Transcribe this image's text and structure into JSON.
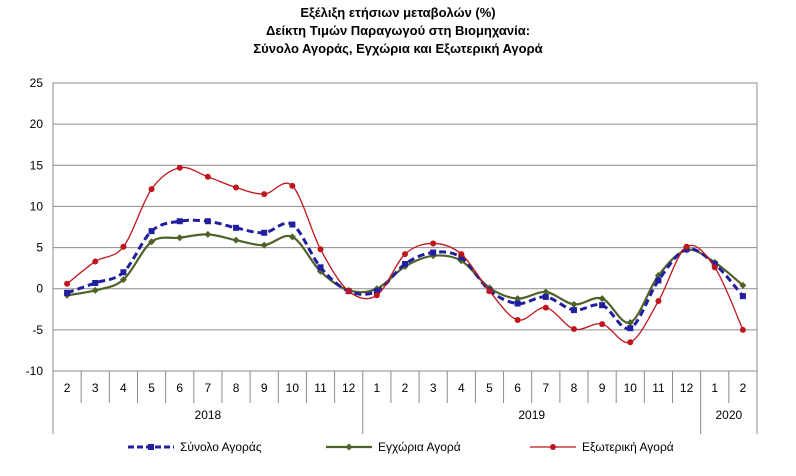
{
  "chart_data": {
    "type": "line",
    "title_lines": [
      "Εξέλιξη ετήσιων μεταβολών (%)",
      "Δείκτη Τιμών Παραγωγού στη Βιομηχανία:",
      "Σύνολο Αγοράς, Εγχώρια και Εξωτερική Αγορά"
    ],
    "xlabel": "",
    "ylabel": "",
    "ylim": [
      -10,
      25
    ],
    "yticks": [
      "25",
      "20",
      "15",
      "10",
      "5",
      "0",
      "-5",
      "-10"
    ],
    "ytick_values": [
      25,
      20,
      15,
      10,
      5,
      0,
      -5,
      -10
    ],
    "categories": [
      "2",
      "3",
      "4",
      "5",
      "6",
      "7",
      "8",
      "9",
      "10",
      "11",
      "12",
      "1",
      "2",
      "3",
      "4",
      "5",
      "6",
      "7",
      "8",
      "9",
      "10",
      "11",
      "12",
      "1",
      "2"
    ],
    "year_groups": [
      {
        "label": "2018",
        "start": 0,
        "end": 10
      },
      {
        "label": "2019",
        "start": 11,
        "end": 22
      },
      {
        "label": "2020",
        "start": 23,
        "end": 24
      }
    ],
    "grid": true,
    "legend_position": "bottom",
    "series": [
      {
        "name": "Σύνολο Αγοράς",
        "color": "#1f1fa0",
        "style": "dashed-square",
        "values": [
          -0.5,
          0.7,
          2.0,
          7.0,
          8.2,
          8.2,
          7.4,
          6.8,
          7.8,
          2.6,
          -0.3,
          -0.3,
          3.0,
          4.4,
          3.8,
          -0.2,
          -1.8,
          -1.0,
          -2.6,
          -2.0,
          -4.8,
          1.0,
          4.8,
          3.0,
          -0.9
        ]
      },
      {
        "name": "Εγχώρια Αγορά",
        "color": "#4f6228",
        "style": "solid-diamond",
        "values": [
          -0.8,
          -0.2,
          1.1,
          5.7,
          6.2,
          6.6,
          5.9,
          5.3,
          6.3,
          2.1,
          -0.2,
          0.0,
          2.7,
          4.0,
          3.4,
          0.1,
          -1.2,
          -0.4,
          -1.9,
          -1.2,
          -4.1,
          1.6,
          4.7,
          3.2,
          0.4
        ]
      },
      {
        "name": "Εξωτερική Αγορά",
        "color": "#c0151b",
        "style": "solid-circle",
        "values": [
          0.6,
          3.3,
          5.1,
          12.1,
          14.7,
          13.6,
          12.3,
          11.5,
          12.5,
          4.8,
          -0.3,
          -0.8,
          4.2,
          5.5,
          4.2,
          -0.3,
          -3.8,
          -2.3,
          -4.9,
          -4.3,
          -6.5,
          -1.5,
          5.1,
          2.6,
          -5.0
        ]
      }
    ]
  }
}
